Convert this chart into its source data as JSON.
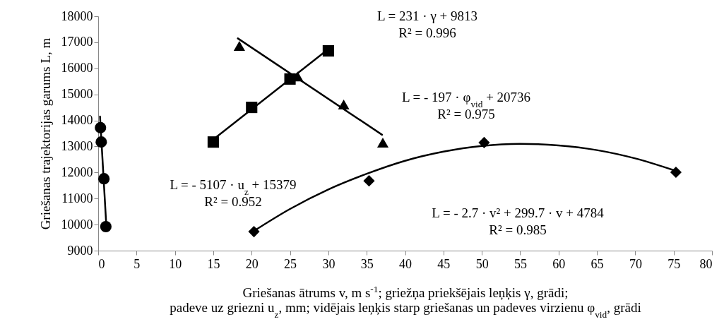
{
  "chart_data": {
    "type": "scatter",
    "xlabel": "Griešanas ātrums v, m s$^{-1}$; griežņa priekšējais leņķis γ, grādi;\npadeve uz griezni u$_{z}$, mm; vidējais leņķis starp griešanas un padeves virzienu φ$_{vid}$, grādi",
    "ylabel": "Griešanas trajektorijas garums L, m",
    "xlim": [
      0,
      80
    ],
    "xticks": [
      0,
      5,
      10,
      15,
      20,
      25,
      30,
      35,
      40,
      45,
      50,
      55,
      60,
      65,
      70,
      75,
      80
    ],
    "ylim": [
      9000,
      18000
    ],
    "yticks": [
      9000,
      10000,
      11000,
      12000,
      13000,
      14000,
      15000,
      16000,
      17000,
      18000
    ],
    "grid": false,
    "series": [
      {
        "marker": "circle",
        "color": "#000000",
        "x": [
          0.3,
          0.4,
          0.75,
          1.0
        ],
        "values": [
          13720,
          13170,
          11760,
          9920
        ]
      },
      {
        "type": "line",
        "marker": "none",
        "color": "#000000",
        "x": [
          0.24,
          1.06
        ],
        "values": [
          14150,
          9960
        ]
      },
      {
        "marker": "square",
        "color": "#000000",
        "x": [
          15,
          20,
          25,
          30
        ],
        "values": [
          13170,
          14500,
          15590,
          16670
        ]
      },
      {
        "type": "line",
        "marker": "none",
        "color": "#000000",
        "x": [
          15,
          30
        ],
        "values": [
          13270,
          16740
        ]
      },
      {
        "marker": "triangle",
        "color": "#000000",
        "x": [
          18.4,
          26,
          32,
          37.1
        ],
        "values": [
          16860,
          15690,
          14610,
          13150
        ]
      },
      {
        "type": "line",
        "marker": "none",
        "color": "#000000",
        "x": [
          18.2,
          37
        ],
        "values": [
          17150,
          13450
        ]
      },
      {
        "marker": "diamond",
        "color": "#000000",
        "x": [
          20.3,
          35.3,
          50.3,
          75.3
        ],
        "values": [
          9730,
          11680,
          13150,
          12010
        ]
      },
      {
        "type": "line",
        "marker": "none",
        "color": "#000000",
        "x": [
          20,
          25,
          30,
          35,
          40,
          45,
          50,
          55,
          60,
          65,
          70,
          75
        ],
        "values": [
          9700,
          10600,
          11350,
          11950,
          12450,
          12800,
          13020,
          13100,
          13040,
          12860,
          12540,
          12090
        ]
      }
    ],
    "annotations": [
      "L = 231 · γ + 9813\nR² = 0.996",
      "L = - 197 · φ$_{vid}$ + 20736\nR² = 0.975",
      "L = - 5107 · u$_{z}$ + 15379\nR² = 0.952",
      "L = - 2.7 · v² + 299.7 · v + 4784\nR² = 0.985"
    ]
  }
}
